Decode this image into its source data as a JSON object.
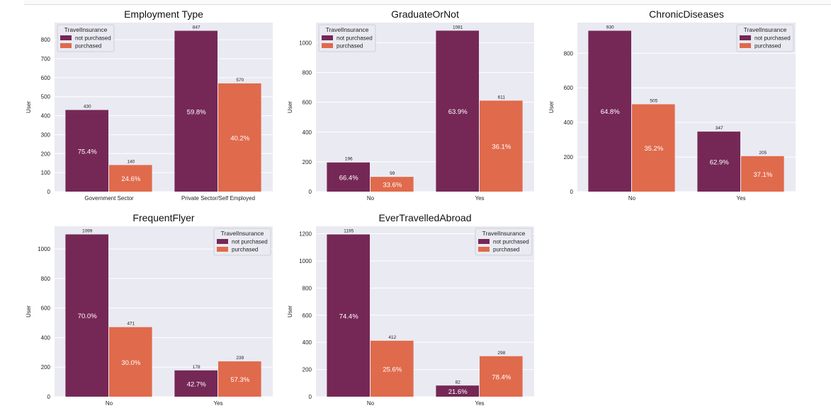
{
  "legend_title": "TravelInsurance",
  "colors": {
    "not_purchased": "#752856",
    "purchased": "#e06a4c",
    "axes_bg": "#eaeaf2",
    "grid": "#ffffff"
  },
  "chart_data": [
    {
      "type": "bar",
      "title": "Employment Type",
      "xlabel": "",
      "ylabel": "User",
      "categories": [
        "Government Sector",
        "Private Sector/Self Employed"
      ],
      "series": [
        {
          "name": "not purchased",
          "values": [
            430,
            847
          ],
          "pct_labels": [
            "75.4%",
            "59.8%"
          ]
        },
        {
          "name": "purchased",
          "values": [
            140,
            570
          ],
          "pct_labels": [
            "24.6%",
            "40.2%"
          ]
        }
      ],
      "ylim": [
        0,
        890
      ],
      "yticks": [
        0,
        100,
        200,
        300,
        400,
        500,
        600,
        700,
        800
      ],
      "legend": "top-left",
      "grid": true
    },
    {
      "type": "bar",
      "title": "GraduateOrNot",
      "xlabel": "",
      "ylabel": "User",
      "categories": [
        "No",
        "Yes"
      ],
      "series": [
        {
          "name": "not purchased",
          "values": [
            196,
            1081
          ],
          "pct_labels": [
            "66.4%",
            "63.9%"
          ]
        },
        {
          "name": "purchased",
          "values": [
            99,
            611
          ],
          "pct_labels": [
            "33.6%",
            "36.1%"
          ]
        }
      ],
      "ylim": [
        0,
        1135
      ],
      "yticks": [
        0,
        200,
        400,
        600,
        800,
        1000
      ],
      "legend": "top-left",
      "grid": true
    },
    {
      "type": "bar",
      "title": "ChronicDiseases",
      "xlabel": "",
      "ylabel": "User",
      "categories": [
        "No",
        "Yes"
      ],
      "series": [
        {
          "name": "not purchased",
          "values": [
            930,
            347
          ],
          "pct_labels": [
            "64.8%",
            "62.9%"
          ]
        },
        {
          "name": "purchased",
          "values": [
            505,
            205
          ],
          "pct_labels": [
            "35.2%",
            "37.1%"
          ]
        }
      ],
      "ylim": [
        0,
        977
      ],
      "yticks": [
        0,
        200,
        400,
        600,
        800
      ],
      "legend": "top-right",
      "grid": true
    },
    {
      "type": "bar",
      "title": "FrequentFlyer",
      "xlabel": "",
      "ylabel": "User",
      "categories": [
        "No",
        "Yes"
      ],
      "series": [
        {
          "name": "not purchased",
          "values": [
            1099,
            178
          ],
          "pct_labels": [
            "70.0%",
            "42.7%"
          ]
        },
        {
          "name": "purchased",
          "values": [
            471,
            239
          ],
          "pct_labels": [
            "30.0%",
            "57.3%"
          ]
        }
      ],
      "ylim": [
        0,
        1154
      ],
      "yticks": [
        0,
        200,
        400,
        600,
        800,
        1000
      ],
      "legend": "top-right",
      "grid": true
    },
    {
      "type": "bar",
      "title": "EverTravelledAbroad",
      "xlabel": "",
      "ylabel": "User",
      "categories": [
        "No",
        "Yes"
      ],
      "series": [
        {
          "name": "not purchased",
          "values": [
            1195,
            82
          ],
          "pct_labels": [
            "74.4%",
            "21.6%"
          ]
        },
        {
          "name": "purchased",
          "values": [
            412,
            298
          ],
          "pct_labels": [
            "25.6%",
            "78.4%"
          ]
        }
      ],
      "ylim": [
        0,
        1255
      ],
      "yticks": [
        0,
        200,
        400,
        600,
        800,
        1000,
        1200
      ],
      "legend": "top-right",
      "grid": true
    }
  ]
}
